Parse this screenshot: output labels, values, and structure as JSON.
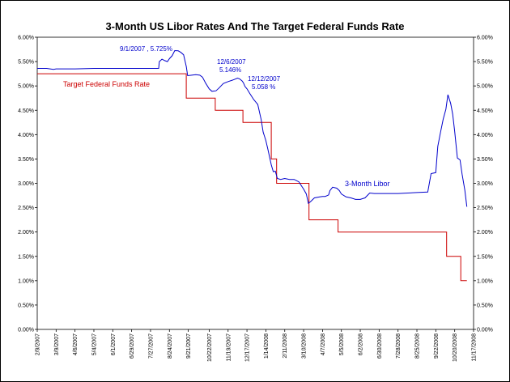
{
  "chart_data": {
    "type": "line",
    "title": "3-Month US Libor Rates And The Target Federal Funds Rate",
    "xlabel": "",
    "ylabel": "",
    "ylim": [
      0,
      6
    ],
    "xlim": [
      "2007-02-09",
      "2008-11-17"
    ],
    "grid": false,
    "y_ticks": [
      "0.00%",
      "0.50%",
      "1.00%",
      "1.50%",
      "2.00%",
      "2.50%",
      "3.00%",
      "3.50%",
      "4.00%",
      "4.50%",
      "5.00%",
      "5.50%",
      "6.00%"
    ],
    "x_ticks": [
      {
        "date": "2007-02-09",
        "label": "2/9/2007"
      },
      {
        "date": "2007-03-09",
        "label": "3/9/2007"
      },
      {
        "date": "2007-04-06",
        "label": "4/6/2007"
      },
      {
        "date": "2007-05-04",
        "label": "5/4/2007"
      },
      {
        "date": "2007-06-01",
        "label": "6/1/2007"
      },
      {
        "date": "2007-06-29",
        "label": "6/29/2007"
      },
      {
        "date": "2007-07-27",
        "label": "7/27/2007"
      },
      {
        "date": "2007-08-24",
        "label": "8/24/2007"
      },
      {
        "date": "2007-09-21",
        "label": "9/21/2007"
      },
      {
        "date": "2007-10-22",
        "label": "10/22/2007"
      },
      {
        "date": "2007-11-19",
        "label": "11/19/2007"
      },
      {
        "date": "2007-12-17",
        "label": "12/17/2007"
      },
      {
        "date": "2008-01-14",
        "label": "1/14/2008"
      },
      {
        "date": "2008-02-11",
        "label": "2/11/2008"
      },
      {
        "date": "2008-03-10",
        "label": "3/10/2008"
      },
      {
        "date": "2008-04-07",
        "label": "4/7/2008"
      },
      {
        "date": "2008-05-05",
        "label": "5/5/2008"
      },
      {
        "date": "2008-06-02",
        "label": "6/2/2008"
      },
      {
        "date": "2008-06-30",
        "label": "6/30/2008"
      },
      {
        "date": "2008-07-28",
        "label": "7/28/2008"
      },
      {
        "date": "2008-08-25",
        "label": "8/25/2008"
      },
      {
        "date": "2008-09-22",
        "label": "9/22/2008"
      },
      {
        "date": "2008-10-20",
        "label": "10/20/2008"
      },
      {
        "date": "2008-11-17",
        "label": "11/17/2008"
      }
    ],
    "series": [
      {
        "name": "3-Month Libor",
        "color": "#0000cc",
        "step": false,
        "points": [
          [
            "2007-02-09",
            5.36
          ],
          [
            "2007-02-23",
            5.36
          ],
          [
            "2007-03-05",
            5.34
          ],
          [
            "2007-03-09",
            5.35
          ],
          [
            "2007-04-06",
            5.35
          ],
          [
            "2007-05-04",
            5.36
          ],
          [
            "2007-06-01",
            5.36
          ],
          [
            "2007-06-29",
            5.36
          ],
          [
            "2007-07-27",
            5.36
          ],
          [
            "2007-08-08",
            5.36
          ],
          [
            "2007-08-09",
            5.5
          ],
          [
            "2007-08-13",
            5.55
          ],
          [
            "2007-08-17",
            5.52
          ],
          [
            "2007-08-21",
            5.5
          ],
          [
            "2007-08-24",
            5.56
          ],
          [
            "2007-08-28",
            5.62
          ],
          [
            "2007-09-01",
            5.725
          ],
          [
            "2007-09-06",
            5.72
          ],
          [
            "2007-09-10",
            5.69
          ],
          [
            "2007-09-14",
            5.64
          ],
          [
            "2007-09-18",
            5.4
          ],
          [
            "2007-09-20",
            5.21
          ],
          [
            "2007-09-26",
            5.22
          ],
          [
            "2007-10-02",
            5.23
          ],
          [
            "2007-10-08",
            5.22
          ],
          [
            "2007-10-12",
            5.18
          ],
          [
            "2007-10-17",
            5.05
          ],
          [
            "2007-10-22",
            4.94
          ],
          [
            "2007-10-26",
            4.89
          ],
          [
            "2007-11-01",
            4.9
          ],
          [
            "2007-11-05",
            4.95
          ],
          [
            "2007-11-12",
            5.05
          ],
          [
            "2007-11-19",
            5.09
          ],
          [
            "2007-11-26",
            5.12
          ],
          [
            "2007-12-03",
            5.16
          ],
          [
            "2007-12-06",
            5.146
          ],
          [
            "2007-12-10",
            5.1
          ],
          [
            "2007-12-12",
            5.058
          ],
          [
            "2007-12-14",
            4.99
          ],
          [
            "2007-12-17",
            4.94
          ],
          [
            "2007-12-21",
            4.85
          ],
          [
            "2007-12-27",
            4.72
          ],
          [
            "2008-01-02",
            4.62
          ],
          [
            "2008-01-07",
            4.31
          ],
          [
            "2008-01-10",
            4.05
          ],
          [
            "2008-01-14",
            3.88
          ],
          [
            "2008-01-17",
            3.7
          ],
          [
            "2008-01-22",
            3.38
          ],
          [
            "2008-01-25",
            3.24
          ],
          [
            "2008-01-28",
            3.25
          ],
          [
            "2008-01-31",
            3.1
          ],
          [
            "2008-02-05",
            3.08
          ],
          [
            "2008-02-11",
            3.1
          ],
          [
            "2008-02-18",
            3.08
          ],
          [
            "2008-02-25",
            3.08
          ],
          [
            "2008-03-03",
            3.03
          ],
          [
            "2008-03-10",
            2.88
          ],
          [
            "2008-03-14",
            2.78
          ],
          [
            "2008-03-17",
            2.59
          ],
          [
            "2008-03-20",
            2.62
          ],
          [
            "2008-03-26",
            2.7
          ],
          [
            "2008-04-03",
            2.72
          ],
          [
            "2008-04-07",
            2.73
          ],
          [
            "2008-04-11",
            2.73
          ],
          [
            "2008-04-16",
            2.76
          ],
          [
            "2008-04-18",
            2.85
          ],
          [
            "2008-04-22",
            2.92
          ],
          [
            "2008-04-28",
            2.9
          ],
          [
            "2008-05-02",
            2.85
          ],
          [
            "2008-05-05",
            2.78
          ],
          [
            "2008-05-12",
            2.72
          ],
          [
            "2008-05-19",
            2.7
          ],
          [
            "2008-05-26",
            2.67
          ],
          [
            "2008-06-02",
            2.67
          ],
          [
            "2008-06-09",
            2.7
          ],
          [
            "2008-06-16",
            2.8
          ],
          [
            "2008-06-23",
            2.79
          ],
          [
            "2008-06-30",
            2.79
          ],
          [
            "2008-07-28",
            2.79
          ],
          [
            "2008-08-25",
            2.81
          ],
          [
            "2008-09-10",
            2.82
          ],
          [
            "2008-09-15",
            3.2
          ],
          [
            "2008-09-22",
            3.22
          ],
          [
            "2008-09-25",
            3.76
          ],
          [
            "2008-09-29",
            4.05
          ],
          [
            "2008-10-03",
            4.32
          ],
          [
            "2008-10-07",
            4.52
          ],
          [
            "2008-10-10",
            4.82
          ],
          [
            "2008-10-14",
            4.64
          ],
          [
            "2008-10-17",
            4.42
          ],
          [
            "2008-10-20",
            4.06
          ],
          [
            "2008-10-24",
            3.52
          ],
          [
            "2008-10-28",
            3.48
          ],
          [
            "2008-10-31",
            3.19
          ],
          [
            "2008-11-04",
            2.86
          ],
          [
            "2008-11-07",
            2.52
          ]
        ]
      },
      {
        "name": "Target Federal Funds Rate",
        "color": "#cc0000",
        "step": true,
        "points": [
          [
            "2007-02-09",
            5.25
          ],
          [
            "2007-09-18",
            4.75
          ],
          [
            "2007-10-31",
            4.5
          ],
          [
            "2007-12-11",
            4.25
          ],
          [
            "2008-01-22",
            3.5
          ],
          [
            "2008-01-30",
            3.0
          ],
          [
            "2008-03-18",
            2.25
          ],
          [
            "2008-04-30",
            2.0
          ],
          [
            "2008-10-08",
            1.5
          ],
          [
            "2008-10-29",
            1.0
          ],
          [
            "2008-11-07",
            1.0
          ]
        ]
      }
    ],
    "annotations": [
      {
        "text": "9/1/2007 , 5.725%",
        "x": "2007-09-01",
        "y": 5.725,
        "color": "#0000cc"
      },
      {
        "text": "12/6/2007",
        "x": "2007-12-06",
        "y": 5.146,
        "color": "#0000cc"
      },
      {
        "text": "5.146%",
        "x": "2007-12-06",
        "y": 5.146,
        "color": "#0000cc"
      },
      {
        "text": "12/12/2007",
        "x": "2007-12-12",
        "y": 5.058,
        "color": "#0000cc"
      },
      {
        "text": "5.058 %",
        "x": "2007-12-12",
        "y": 5.058,
        "color": "#0000cc"
      },
      {
        "text": "Target Federal Funds Rate",
        "series": "Target Federal Funds Rate",
        "color": "#cc0000"
      },
      {
        "text": "3-Month Libor",
        "series": "3-Month Libor",
        "color": "#0000cc"
      }
    ]
  }
}
